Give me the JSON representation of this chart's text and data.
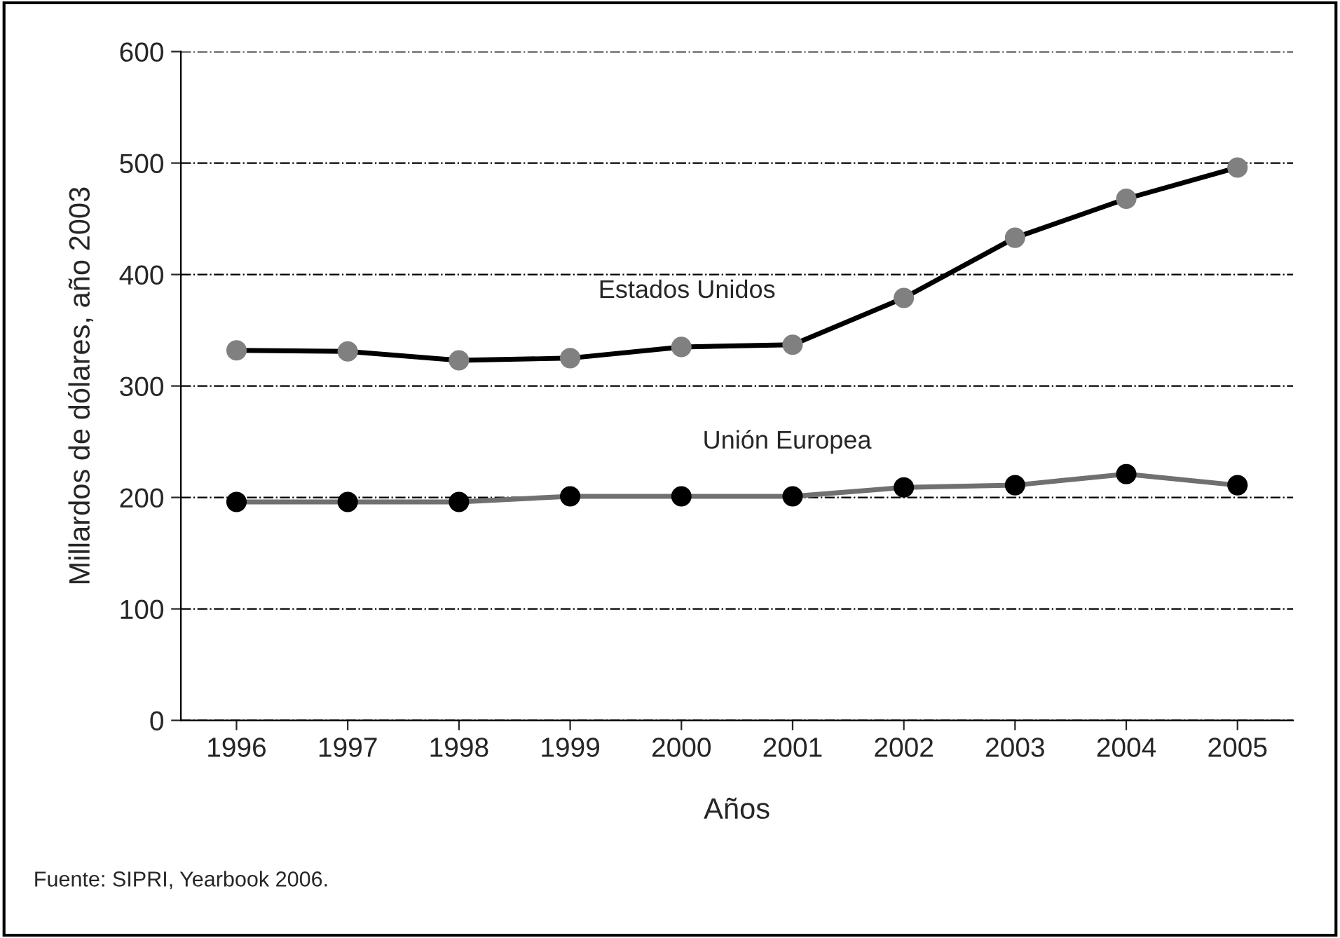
{
  "chart_data": {
    "type": "line",
    "xlabel": "Años",
    "ylabel": "Millardos de dólares, año 2003",
    "categories": [
      "1996",
      "1997",
      "1998",
      "1999",
      "2000",
      "2001",
      "2002",
      "2003",
      "2004",
      "2005"
    ],
    "series": [
      {
        "name": "Estados Unidos",
        "color": "#000000",
        "colors": [
          "#808080",
          "#808080",
          "#808080",
          "#808080",
          "#808080",
          "#808080",
          "#808080",
          "#808080",
          "#808080",
          "#808080"
        ],
        "values": [
          332,
          331,
          323,
          325,
          335,
          337,
          379,
          433,
          468,
          496
        ]
      },
      {
        "name": "Unión Europea",
        "color": "#707070",
        "colors": [
          "#000000",
          "#000000",
          "#000000",
          "#000000",
          "#000000",
          "#000000",
          "#000000",
          "#000000",
          "#000000",
          "#000000"
        ],
        "values": [
          196,
          196,
          196,
          201,
          201,
          201,
          209,
          211,
          221,
          211
        ]
      }
    ],
    "ylim": [
      0,
      600
    ],
    "yticks": [
      0,
      100,
      200,
      300,
      400,
      500,
      600
    ],
    "grid": "y",
    "marker": "circle",
    "line_style": "solid",
    "legend": false,
    "annotations": [
      "Fuente: SIPRI, Yearbook 2006."
    ]
  }
}
